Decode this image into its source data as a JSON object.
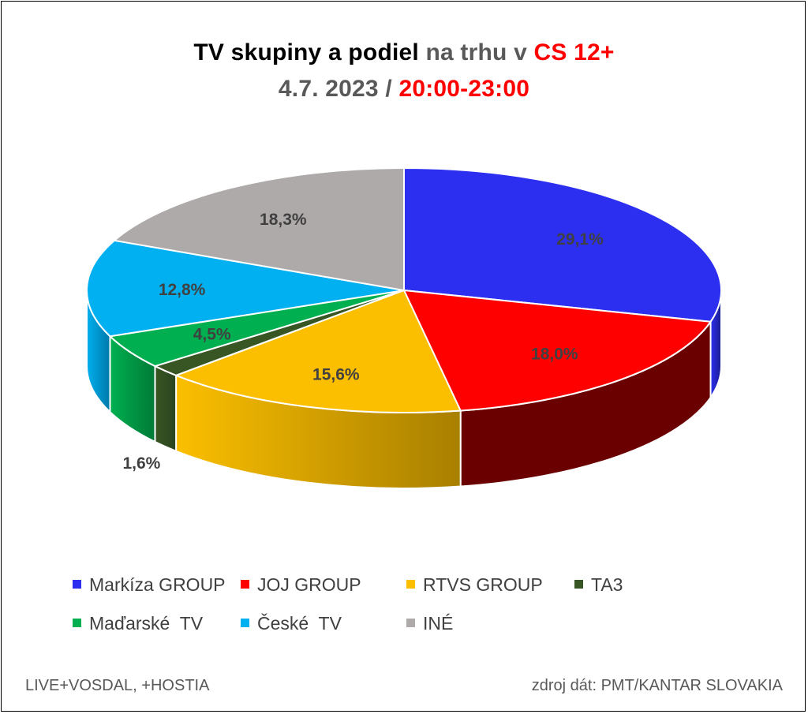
{
  "title": {
    "line1": [
      {
        "text": "TV skupiny a podiel ",
        "color": "#000000"
      },
      {
        "text": "na trhu v ",
        "color": "#595959"
      },
      {
        "text": "CS 12+",
        "color": "#ff0000"
      }
    ],
    "line2": [
      {
        "text": "4.7. 2023 / ",
        "color": "#595959"
      },
      {
        "text": "20:00-23:00",
        "color": "#ff0000"
      }
    ]
  },
  "chart_data": {
    "type": "pie",
    "categories": [
      "Markíza GROUP",
      "JOJ GROUP",
      "RTVS GROUP",
      "TA3",
      "Maďarské  TV",
      "České  TV",
      "INÉ"
    ],
    "values": [
      29.1,
      18.0,
      15.6,
      1.6,
      4.5,
      12.8,
      18.3
    ],
    "value_labels": [
      "29,1%",
      "18,0%",
      "15,6%",
      "1,6%",
      "4,5%",
      "12,8%",
      "18,3%"
    ],
    "colors": [
      "#2c2ff0",
      "#ff0000",
      "#fbbf00",
      "#375623",
      "#00b050",
      "#00b0f0",
      "#aeaaaa"
    ],
    "side_colors": [
      "#1a1c8f",
      "#6b0000",
      "#a87f00",
      "#2b4420",
      "#007a37",
      "#0078a8",
      "#767676"
    ],
    "style": "3d",
    "legend_position": "bottom"
  },
  "footer": {
    "left": "LIVE+VOSDAL, +HOSTIA",
    "right": "zdroj dát: PMT/KANTAR SLOVAKIA"
  }
}
